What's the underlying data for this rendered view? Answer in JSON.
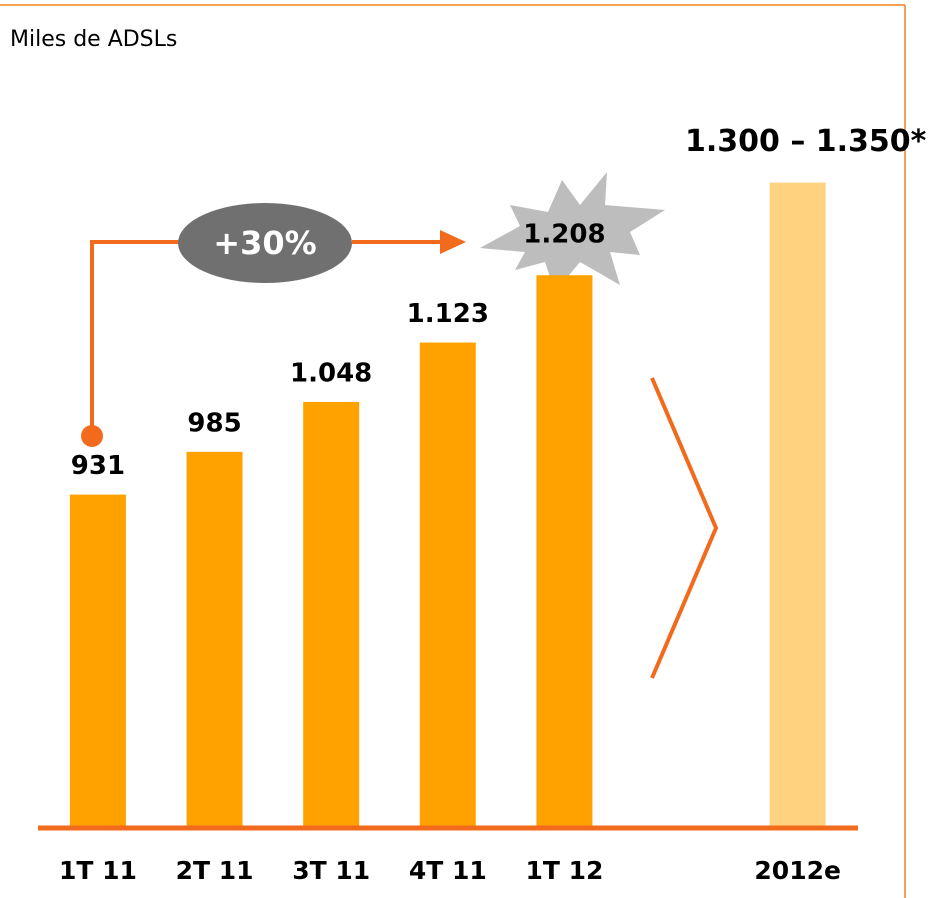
{
  "chart_data": {
    "type": "bar",
    "title": "Miles de ADSLs",
    "categories": [
      "1T 11",
      "2T 11",
      "3T 11",
      "4T 11",
      "1T 12",
      null,
      "2012e"
    ],
    "values": [
      931,
      985,
      1048,
      1123,
      1208,
      null,
      1325
    ],
    "value_labels": [
      "931",
      "985",
      "1.048",
      "1.123",
      "1.208",
      null,
      "1.300 – 1.350*"
    ],
    "colors": [
      "#FFA200",
      "#FFA200",
      "#FFA200",
      "#FFA200",
      "#FFA200",
      null,
      "#FFD27F"
    ],
    "annotations": [
      "+30%"
    ],
    "ylim": [
      510,
      1500
    ]
  }
}
